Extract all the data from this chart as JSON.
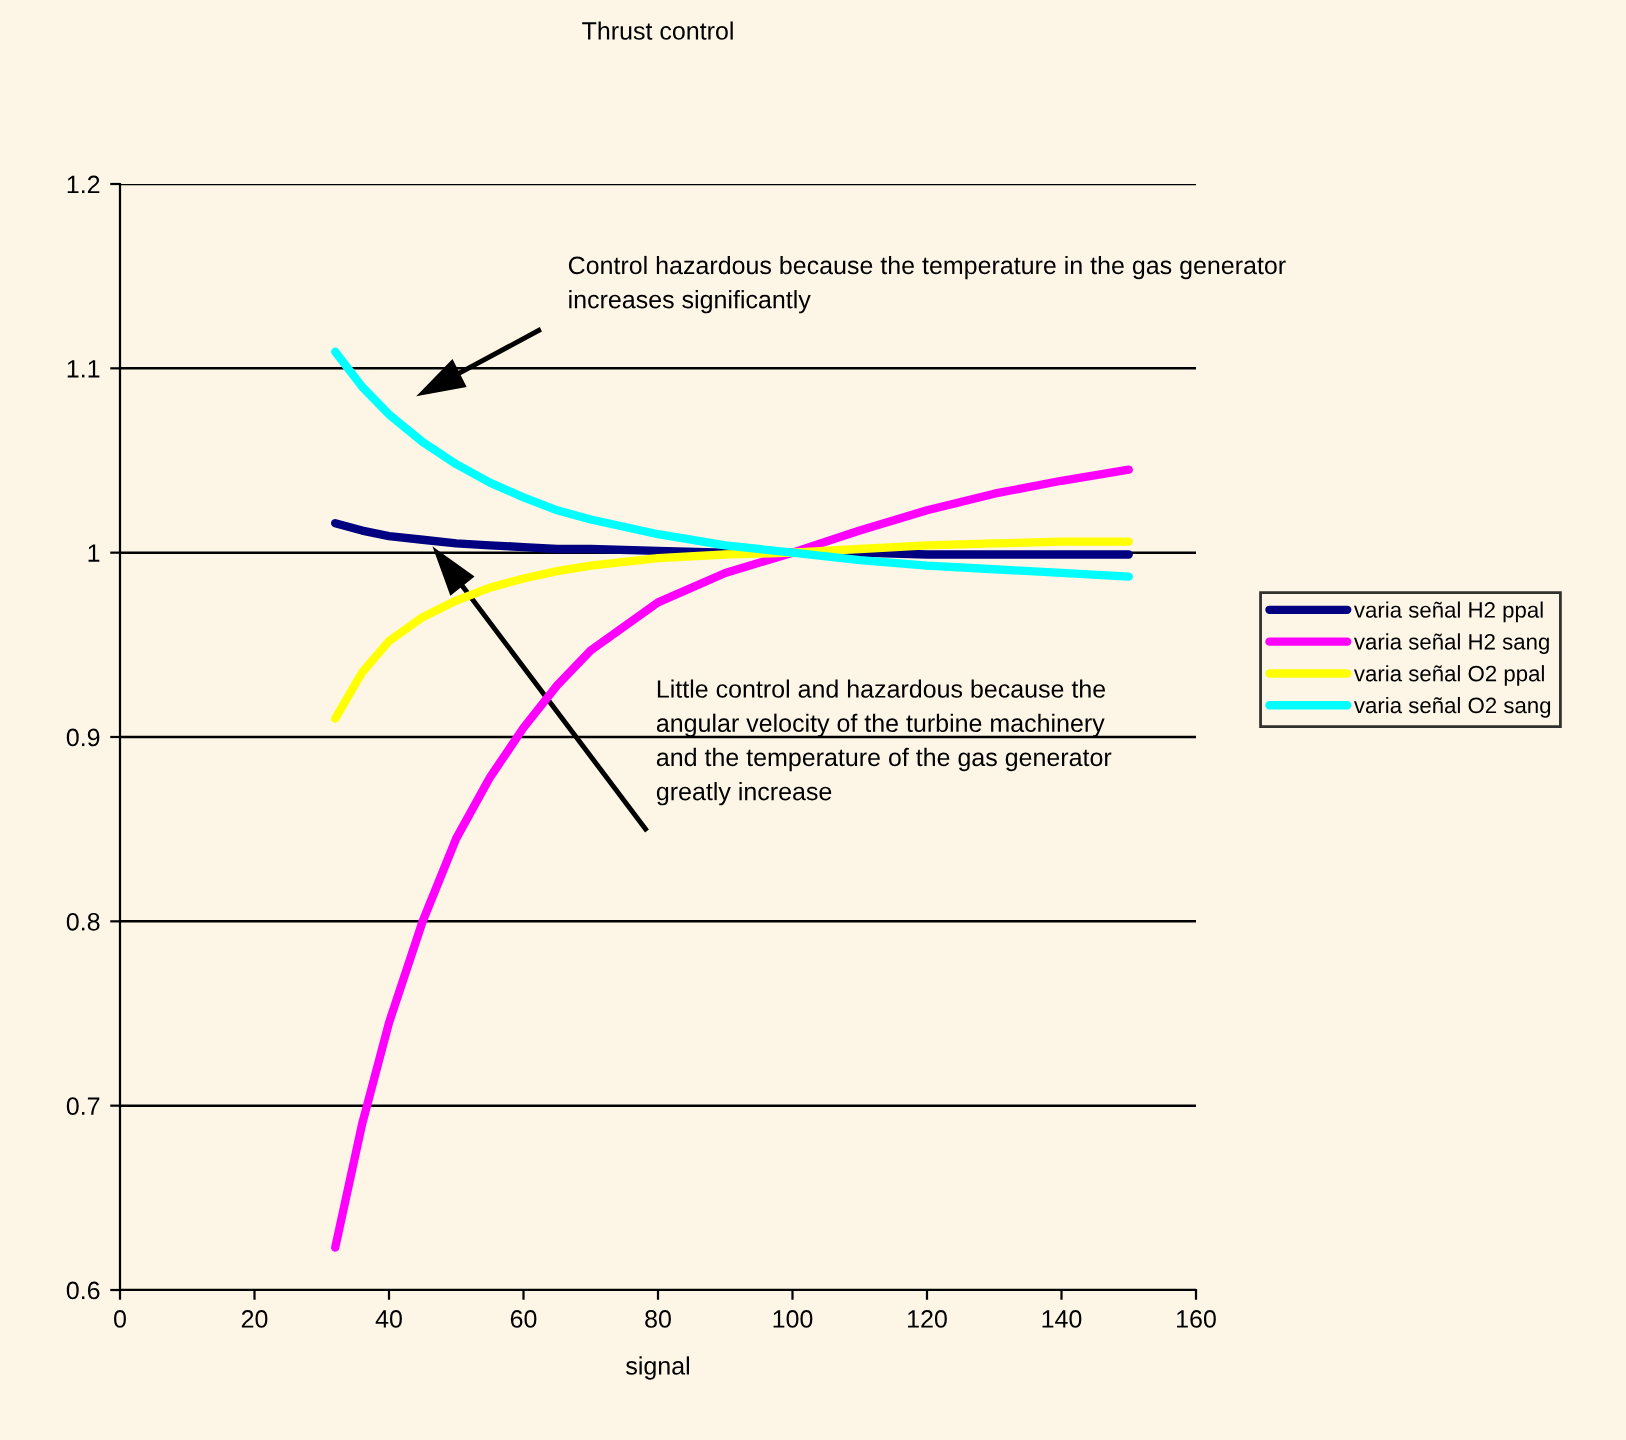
{
  "chart_data": {
    "type": "line",
    "title": "Thrust control",
    "xlabel": "signal",
    "xlim": [
      0,
      160
    ],
    "xticks": [
      0,
      20,
      40,
      60,
      80,
      100,
      120,
      140,
      160
    ],
    "ylim": [
      0.6,
      1.2
    ],
    "yticks": [
      0.6,
      0.7,
      0.8,
      0.9,
      1,
      1.1,
      1.2
    ],
    "grid": "y",
    "legend": "right",
    "line_style": "solid",
    "marker": "none",
    "x": [
      32,
      36,
      40,
      45,
      50,
      55,
      60,
      65,
      70,
      80,
      90,
      100,
      110,
      120,
      130,
      140,
      150
    ],
    "series": [
      {
        "name": "varia señal H2 ppal",
        "color": "#000080",
        "values": [
          1.016,
          1.012,
          1.009,
          1.007,
          1.005,
          1.004,
          1.003,
          1.002,
          1.002,
          1.001,
          1.0,
          1.0,
          1.0,
          0.999,
          0.999,
          0.999,
          0.999
        ]
      },
      {
        "name": "varia señal H2 sang",
        "color": "#ff00ff",
        "values": [
          0.623,
          0.69,
          0.745,
          0.8,
          0.845,
          0.878,
          0.905,
          0.928,
          0.947,
          0.973,
          0.989,
          1.0,
          1.012,
          1.023,
          1.032,
          1.039,
          1.045
        ]
      },
      {
        "name": "varia señal O2 ppal",
        "color": "#ffff00",
        "values": [
          0.91,
          0.935,
          0.952,
          0.965,
          0.974,
          0.981,
          0.986,
          0.99,
          0.993,
          0.997,
          0.999,
          1.0,
          1.002,
          1.004,
          1.005,
          1.006,
          1.006
        ]
      },
      {
        "name": "varia señal O2 sang",
        "color": "#00ffff",
        "values": [
          1.109,
          1.09,
          1.075,
          1.06,
          1.048,
          1.038,
          1.03,
          1.023,
          1.018,
          1.01,
          1.004,
          1.0,
          0.996,
          0.993,
          0.991,
          0.989,
          0.987
        ]
      }
    ],
    "annotations": [
      "Control hazardous because the temperature in the gas generator\nincreases significantly",
      "Little control and hazardous because the\nangular velocity of the turbine machinery\nand the temperature of the gas generator\ngreatly increase"
    ]
  }
}
